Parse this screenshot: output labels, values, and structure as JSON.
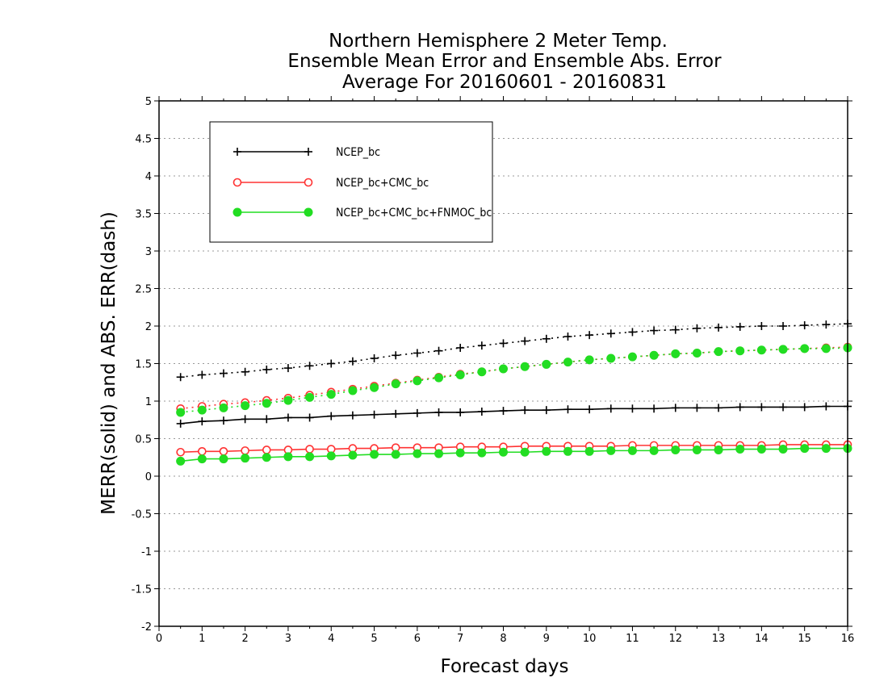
{
  "chart_data": {
    "type": "line",
    "title_lines": [
      "Northern Hemisphere 2 Meter Temp.",
      "Ensemble Mean Error and Ensemble Abs. Error",
      "Average For 20160601 - 20160831"
    ],
    "xlabel": "Forecast days",
    "ylabel": "MERR(solid) and ABS. ERR(dash)",
    "xlim": [
      0,
      16
    ],
    "ylim": [
      -2,
      5
    ],
    "xticks": [
      0,
      1,
      2,
      3,
      4,
      5,
      6,
      7,
      8,
      9,
      10,
      11,
      12,
      13,
      14,
      15,
      16
    ],
    "yticks": [
      -2,
      -1.5,
      -1,
      -0.5,
      0,
      0.5,
      1,
      1.5,
      2,
      2.5,
      3,
      3.5,
      4,
      4.5,
      5
    ],
    "ytick_labels": [
      "-2",
      "-1.5",
      "-1",
      "-0.5",
      "0",
      "0.5",
      "1",
      "1.5",
      "2",
      "2.5",
      "3",
      "3.5",
      "4",
      "4.5",
      "5"
    ],
    "grid": true,
    "legend_position": "top-left",
    "x": [
      0.5,
      1.0,
      1.5,
      2.0,
      2.5,
      3.0,
      3.5,
      4.0,
      4.5,
      5.0,
      5.5,
      6.0,
      6.5,
      7.0,
      7.5,
      8.0,
      8.5,
      9.0,
      9.5,
      10.0,
      10.5,
      11.0,
      11.5,
      12.0,
      12.5,
      13.0,
      13.5,
      14.0,
      14.5,
      15.0,
      15.5,
      16.0
    ],
    "series": [
      {
        "name": "NCEP_bc",
        "color": "#000000",
        "marker": "plus",
        "mean_error": [
          0.7,
          0.73,
          0.74,
          0.76,
          0.76,
          0.78,
          0.78,
          0.8,
          0.81,
          0.82,
          0.83,
          0.84,
          0.85,
          0.85,
          0.86,
          0.87,
          0.88,
          0.88,
          0.89,
          0.89,
          0.9,
          0.9,
          0.9,
          0.91,
          0.91,
          0.91,
          0.92,
          0.92,
          0.92,
          0.92,
          0.93,
          0.93
        ],
        "abs_error": [
          1.32,
          1.35,
          1.37,
          1.39,
          1.42,
          1.44,
          1.47,
          1.5,
          1.53,
          1.57,
          1.61,
          1.64,
          1.67,
          1.71,
          1.74,
          1.77,
          1.8,
          1.83,
          1.86,
          1.88,
          1.9,
          1.92,
          1.94,
          1.95,
          1.97,
          1.98,
          1.99,
          2.0,
          2.0,
          2.01,
          2.02,
          2.03
        ]
      },
      {
        "name": "NCEP_bc+CMC_bc",
        "color": "#ff3333",
        "marker": "open-circle",
        "mean_error": [
          0.32,
          0.33,
          0.33,
          0.34,
          0.35,
          0.35,
          0.36,
          0.36,
          0.37,
          0.37,
          0.38,
          0.38,
          0.38,
          0.39,
          0.39,
          0.39,
          0.4,
          0.4,
          0.4,
          0.4,
          0.4,
          0.41,
          0.41,
          0.41,
          0.41,
          0.41,
          0.41,
          0.41,
          0.42,
          0.42,
          0.42,
          0.42
        ],
        "abs_error": [
          0.9,
          0.93,
          0.96,
          0.98,
          1.01,
          1.04,
          1.08,
          1.12,
          1.16,
          1.2,
          1.24,
          1.28,
          1.32,
          1.36,
          1.39,
          1.43,
          1.46,
          1.49,
          1.52,
          1.55,
          1.57,
          1.59,
          1.61,
          1.63,
          1.64,
          1.66,
          1.67,
          1.68,
          1.69,
          1.7,
          1.71,
          1.72
        ]
      },
      {
        "name": "NCEP_bc+CMC_bc+FNMOC_bc",
        "color": "#22dd22",
        "marker": "filled-circle",
        "mean_error": [
          0.2,
          0.23,
          0.23,
          0.24,
          0.25,
          0.26,
          0.26,
          0.27,
          0.28,
          0.29,
          0.29,
          0.3,
          0.3,
          0.31,
          0.31,
          0.32,
          0.32,
          0.33,
          0.33,
          0.33,
          0.34,
          0.34,
          0.34,
          0.35,
          0.35,
          0.35,
          0.36,
          0.36,
          0.36,
          0.37,
          0.37,
          0.37
        ],
        "abs_error": [
          0.85,
          0.88,
          0.91,
          0.94,
          0.97,
          1.01,
          1.05,
          1.09,
          1.14,
          1.18,
          1.23,
          1.27,
          1.31,
          1.35,
          1.39,
          1.43,
          1.46,
          1.49,
          1.52,
          1.55,
          1.57,
          1.59,
          1.61,
          1.63,
          1.64,
          1.66,
          1.67,
          1.68,
          1.69,
          1.7,
          1.7,
          1.71
        ]
      }
    ]
  }
}
